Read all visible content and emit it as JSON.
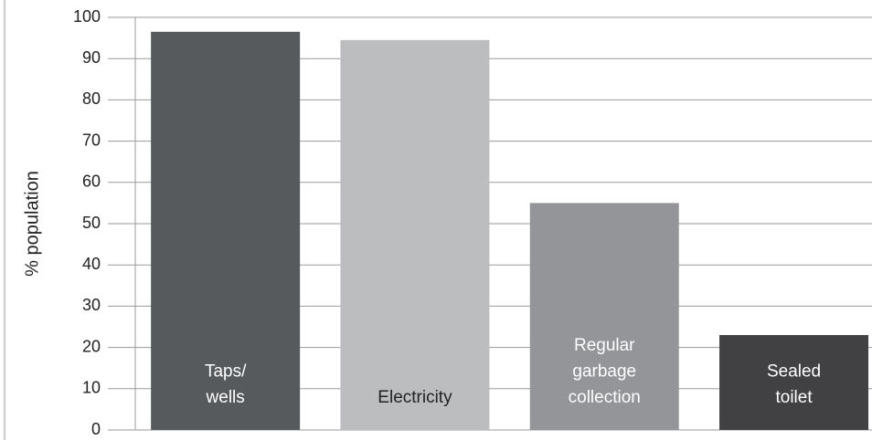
{
  "chart_data": {
    "type": "bar",
    "y_label": "% population",
    "categories": [
      "Taps/\nwells",
      "Electricity",
      "Regular\ngarbage\ncollection",
      "Sealed\ntoilet"
    ],
    "values": [
      96.5,
      94.5,
      55,
      23
    ],
    "colors": [
      "#575a5c",
      "#bbbdbf",
      "#939598",
      "#414143"
    ],
    "ylim": [
      0,
      100
    ],
    "yticks": [
      0,
      10,
      20,
      30,
      40,
      50,
      60,
      70,
      80,
      90,
      100
    ],
    "grid": true
  }
}
